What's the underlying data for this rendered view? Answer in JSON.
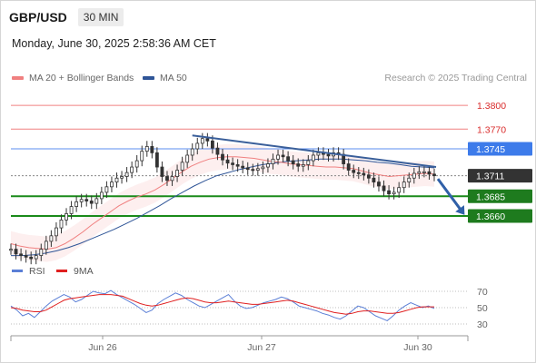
{
  "header": {
    "symbol": "GBP/USD",
    "timeframe": "30 MIN"
  },
  "datetime": "Monday, June 30, 2025 2:58:36 AM CET",
  "legend": {
    "ma20": {
      "label": "MA 20 + Bollinger Bands",
      "color": "#f08080"
    },
    "ma50": {
      "label": "MA 50",
      "color": "#2f5597"
    }
  },
  "credit": "Research © 2025 Trading Central",
  "rsi_legend": {
    "rsi": {
      "label": "RSI",
      "color": "#5b7fd6"
    },
    "ma": {
      "label": "9MA",
      "color": "#e02020"
    }
  },
  "chart_data": [
    {
      "type": "line",
      "title": "",
      "xlabel": "",
      "ylabel": "",
      "x_ticks": [
        "Jun 26",
        "Jun 27",
        "Jun 30"
      ],
      "levels": [
        {
          "value": 1.38,
          "label": "1.3800",
          "kind": "resistance"
        },
        {
          "value": 1.377,
          "label": "1.3770",
          "kind": "resistance"
        },
        {
          "value": 1.3745,
          "label": "1.3745",
          "kind": "pivot"
        },
        {
          "value": 1.3711,
          "label": "1.3711",
          "kind": "last"
        },
        {
          "value": 1.3685,
          "label": "1.3685",
          "kind": "support"
        },
        {
          "value": 1.366,
          "label": "1.3660",
          "kind": "support"
        }
      ],
      "ylim": [
        1.359,
        1.383
      ],
      "price_series": [
        1.3618,
        1.3612,
        1.361,
        1.3608,
        1.3606,
        1.361,
        1.3618,
        1.3628,
        1.3635,
        1.3645,
        1.3655,
        1.3663,
        1.3672,
        1.3678,
        1.3681,
        1.3679,
        1.3676,
        1.3682,
        1.369,
        1.3697,
        1.3703,
        1.3708,
        1.371,
        1.3715,
        1.3722,
        1.373,
        1.3742,
        1.3748,
        1.374,
        1.3722,
        1.371,
        1.3705,
        1.371,
        1.3718,
        1.3728,
        1.3737,
        1.3745,
        1.3752,
        1.3758,
        1.3755,
        1.3746,
        1.3738,
        1.3731,
        1.3727,
        1.3725,
        1.3723,
        1.3721,
        1.3719,
        1.3718,
        1.372,
        1.3722,
        1.3726,
        1.3732,
        1.3737,
        1.3735,
        1.373,
        1.3726,
        1.3723,
        1.3725,
        1.373,
        1.3737,
        1.374,
        1.3738,
        1.3736,
        1.374,
        1.3738,
        1.3726,
        1.3718,
        1.3715,
        1.3714,
        1.3712,
        1.3708,
        1.3703,
        1.3698,
        1.3692,
        1.3688,
        1.369,
        1.3696,
        1.3703,
        1.3708,
        1.3714,
        1.3716,
        1.3716,
        1.3713,
        1.3711
      ],
      "ma20": [
        1.3625,
        1.3622,
        1.362,
        1.3619,
        1.3618,
        1.362,
        1.3625,
        1.3632,
        1.364,
        1.3649,
        1.3657,
        1.3665,
        1.3673,
        1.3679,
        1.3684,
        1.3688,
        1.3693,
        1.37,
        1.3708,
        1.3716,
        1.3723,
        1.3728,
        1.3732,
        1.3734,
        1.3735,
        1.3735,
        1.3734,
        1.3733,
        1.3731,
        1.3729,
        1.3728,
        1.3726,
        1.3725,
        1.3724,
        1.3723,
        1.3722,
        1.3722,
        1.3721,
        1.372,
        1.3717,
        1.3714,
        1.3712,
        1.371,
        1.3711,
        1.3712,
        1.3713,
        1.3714,
        1.3713
      ],
      "ma50": [
        1.361,
        1.361,
        1.3611,
        1.3613,
        1.3616,
        1.362,
        1.3625,
        1.3631,
        1.3637,
        1.3643,
        1.365,
        1.3657,
        1.3665,
        1.3673,
        1.3682,
        1.369,
        1.3698,
        1.3705,
        1.3711,
        1.3715,
        1.3719,
        1.3722,
        1.3725,
        1.3727,
        1.3729,
        1.373,
        1.3731,
        1.3732,
        1.3732,
        1.3732,
        1.3731,
        1.373,
        1.3728,
        1.3727,
        1.3725,
        1.3723,
        1.3722,
        1.3721
      ]
    },
    {
      "type": "line",
      "title": "",
      "y_ticks": [
        70,
        50,
        30
      ],
      "ylim": [
        20,
        80
      ],
      "series": [
        {
          "name": "RSI",
          "values": [
            52,
            47,
            40,
            43,
            38,
            45,
            52,
            58,
            62,
            66,
            63,
            57,
            60,
            65,
            70,
            68,
            67,
            71,
            66,
            62,
            58,
            54,
            49,
            44,
            47,
            55,
            60,
            64,
            68,
            65,
            60,
            56,
            52,
            50,
            54,
            58,
            62,
            66,
            58,
            52,
            49,
            50,
            53,
            56,
            58,
            60,
            63,
            61,
            57,
            52,
            50,
            48,
            46,
            43,
            41,
            38,
            36,
            40,
            46,
            52,
            50,
            45,
            40,
            37,
            34,
            40,
            47,
            52,
            56,
            53,
            50,
            52,
            49
          ]
        },
        {
          "name": "9MA",
          "values": [
            50,
            49,
            47,
            46,
            45,
            45,
            47,
            51,
            55,
            59,
            61,
            62,
            63,
            64,
            65,
            66,
            66,
            66,
            65,
            64,
            61,
            58,
            55,
            53,
            52,
            53,
            55,
            57,
            59,
            61,
            62,
            61,
            59,
            57,
            56,
            56,
            57,
            58,
            57,
            56,
            55,
            54,
            54,
            55,
            56,
            57,
            58,
            59,
            58,
            56,
            54,
            52,
            50,
            48,
            46,
            44,
            43,
            42,
            43,
            45,
            46,
            46,
            45,
            44,
            43,
            43,
            44,
            46,
            48,
            50,
            51,
            51,
            51
          ]
        }
      ]
    }
  ]
}
